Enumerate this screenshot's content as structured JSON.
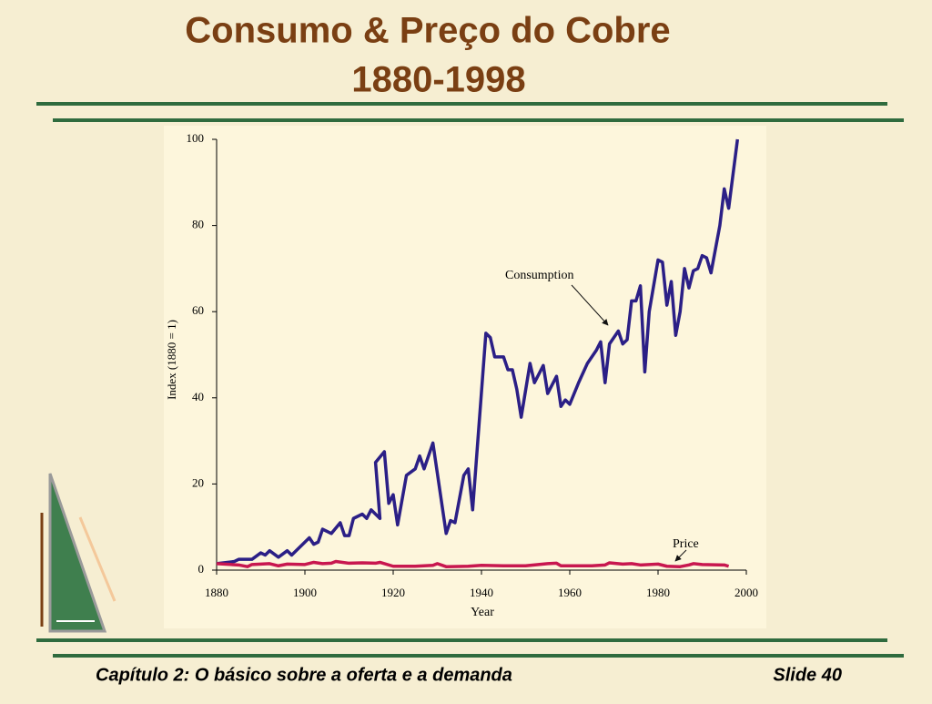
{
  "header": {
    "title": [
      "Consumo & Preço do Cobre",
      "1880-1998"
    ]
  },
  "footer": {
    "left": "Capítulo 2: O básico sobre a oferta e a demanda",
    "right": "Slide 40"
  },
  "chart_data": {
    "type": "line",
    "xlabel": "Year",
    "ylabel": "Index (1880 = 1)",
    "xlim": [
      1880,
      2000
    ],
    "ylim": [
      0,
      100
    ],
    "xticks": [
      1880,
      1900,
      1920,
      1940,
      1960,
      1980,
      2000
    ],
    "yticks": [
      0,
      20,
      40,
      60,
      80,
      100
    ],
    "annotations": [
      "Consumption",
      "Price"
    ],
    "series": [
      {
        "name": "Consumption",
        "color": "#2b1f86",
        "x": [
          1880,
          1884,
          1885,
          1888,
          1890,
          1891,
          1892,
          1894,
          1896,
          1897,
          1900,
          1901,
          1902,
          1903,
          1904,
          1906,
          1908,
          1909,
          1910,
          1911,
          1913,
          1914,
          1915,
          1917,
          1916,
          1918,
          1919,
          1920,
          1921,
          1923,
          1925,
          1926,
          1927,
          1929,
          1932,
          1933,
          1934,
          1936,
          1937,
          1938,
          1941,
          1942,
          1943,
          1945,
          1946,
          1947,
          1948,
          1949,
          1951,
          1952,
          1954,
          1955,
          1957,
          1958,
          1959,
          1960,
          1962,
          1964,
          1966,
          1967,
          1968,
          1969,
          1971,
          1972,
          1973,
          1974,
          1975,
          1976,
          1977,
          1978,
          1980,
          1981,
          1982,
          1983,
          1984,
          1985,
          1986,
          1987,
          1988,
          1989,
          1990,
          1991,
          1992,
          1994,
          1995,
          1996,
          1997,
          1998
        ],
        "values": [
          1.5,
          2,
          2.5,
          2.5,
          4,
          3.5,
          4.5,
          3,
          4.5,
          3.5,
          6.5,
          7.5,
          6,
          6.5,
          9.5,
          8.5,
          11,
          8,
          8,
          12,
          13,
          12,
          14,
          12,
          25,
          27.5,
          15.5,
          17.5,
          10.5,
          22,
          23.5,
          26.5,
          23.5,
          29.5,
          8.5,
          11.5,
          11,
          22,
          23.5,
          14,
          55,
          54,
          49.5,
          49.5,
          46.5,
          46.5,
          42,
          35.5,
          48,
          43.5,
          47.5,
          41,
          45,
          38,
          39.5,
          38.5,
          43.5,
          48,
          51,
          53,
          43.5,
          52.5,
          55.5,
          52.5,
          53.5,
          62.5,
          62.5,
          66,
          46,
          60,
          72,
          71.5,
          61.5,
          67,
          54.5,
          60,
          70,
          65.5,
          69.5,
          70,
          73,
          72.5,
          69,
          80,
          88.5,
          84,
          92,
          100
        ]
      },
      {
        "name": "Price",
        "color": "#c8174f",
        "x": [
          1880,
          1885,
          1887,
          1888,
          1892,
          1894,
          1896,
          1900,
          1902,
          1904,
          1906,
          1907,
          1910,
          1913,
          1916,
          1917,
          1920,
          1925,
          1929,
          1930,
          1932,
          1937,
          1940,
          1945,
          1950,
          1955,
          1957,
          1958,
          1965,
          1968,
          1969,
          1972,
          1974,
          1976,
          1980,
          1982,
          1985,
          1987,
          1988,
          1990,
          1995,
          1996
        ],
        "values": [
          1.5,
          1.2,
          0.8,
          1.3,
          1.5,
          1,
          1.4,
          1.3,
          1.8,
          1.5,
          1.6,
          2,
          1.6,
          1.7,
          1.6,
          1.8,
          0.9,
          0.9,
          1.1,
          1.5,
          0.8,
          0.9,
          1.1,
          1,
          1,
          1.5,
          1.6,
          1,
          1,
          1.2,
          1.7,
          1.4,
          1.5,
          1.2,
          1.4,
          0.9,
          0.8,
          1.2,
          1.5,
          1.3,
          1.2,
          0.9
        ]
      }
    ]
  }
}
